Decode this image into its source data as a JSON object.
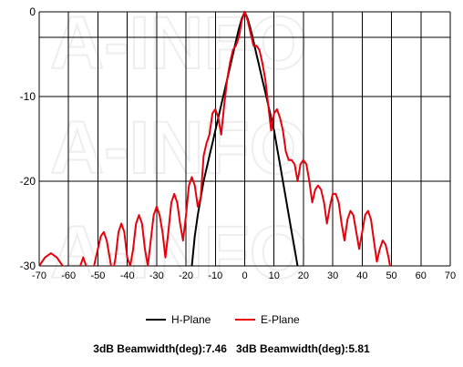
{
  "watermark_text": "A-INFO",
  "chart_data": {
    "type": "line",
    "xlim": [
      -70,
      70
    ],
    "ylim": [
      -30,
      0
    ],
    "x_ticks": [
      -70,
      -60,
      -50,
      -40,
      -30,
      -20,
      -10,
      0,
      10,
      20,
      30,
      40,
      50,
      60,
      70
    ],
    "y_ticks": [
      0,
      -10,
      -20,
      -30
    ],
    "grid": true,
    "legend_position": "bottom-center",
    "series": [
      {
        "name": "H-Plane",
        "color": "#000000",
        "x": [
          -18,
          -17,
          -16,
          -15,
          -14,
          -13,
          -12,
          -11,
          -10,
          -9,
          -8,
          -7,
          -6,
          -5,
          -4,
          -3,
          -2,
          -1,
          0,
          1,
          2,
          3,
          4,
          5,
          6,
          7,
          8,
          9,
          10,
          11,
          12,
          13,
          14,
          15,
          16,
          17,
          18
        ],
        "y": [
          -30,
          -26.5,
          -24,
          -22,
          -20,
          -18.5,
          -17,
          -15.5,
          -14,
          -12.5,
          -11,
          -9.5,
          -8,
          -6.5,
          -5,
          -3.5,
          -2,
          -0.8,
          0,
          -0.8,
          -2,
          -3.5,
          -5,
          -6.5,
          -8,
          -9.5,
          -11,
          -12.5,
          -14,
          -16,
          -18,
          -20,
          -22,
          -24,
          -26,
          -28,
          -30
        ]
      },
      {
        "name": "E-Plane",
        "color": "#e8000b",
        "x": [
          -70,
          -68,
          -66,
          -64,
          -62,
          -60,
          -58,
          -56,
          -55,
          -54,
          -52,
          -50,
          -49,
          -48,
          -47,
          -46,
          -45,
          -44,
          -43,
          -42,
          -41,
          -40,
          -39,
          -38,
          -37,
          -36,
          -35,
          -34,
          -33,
          -32,
          -31,
          -30,
          -29,
          -28,
          -27,
          -26,
          -25,
          -24,
          -23,
          -22,
          -21,
          -20,
          -19,
          -18,
          -17,
          -16,
          -15,
          -14,
          -13,
          -12,
          -11,
          -10,
          -9,
          -8,
          -7,
          -6,
          -5,
          -4,
          -3,
          -2,
          -1,
          0,
          1,
          2,
          3,
          4,
          5,
          6,
          7,
          8,
          9,
          10,
          11,
          12,
          13,
          14,
          15,
          16,
          17,
          18,
          19,
          20,
          21,
          22,
          23,
          24,
          25,
          26,
          27,
          28,
          29,
          30,
          31,
          32,
          33,
          34,
          35,
          36,
          37,
          38,
          39,
          40,
          41,
          42,
          43,
          44,
          45,
          46,
          47,
          48,
          49,
          50
        ],
        "y": [
          -30,
          -29,
          -28.5,
          -29,
          -30,
          -31,
          -31,
          -30,
          -29,
          -30,
          -31,
          -28,
          -26.5,
          -26,
          -27,
          -29,
          -31,
          -29,
          -26,
          -25,
          -26,
          -29,
          -30,
          -28,
          -25,
          -24,
          -25,
          -28,
          -30,
          -27,
          -24,
          -23,
          -24,
          -26,
          -29,
          -26,
          -22.5,
          -21.5,
          -22.5,
          -25,
          -27,
          -24,
          -20.5,
          -19.5,
          -20.5,
          -23,
          -22,
          -17,
          -15.5,
          -14.5,
          -12,
          -11.5,
          -12.5,
          -14.5,
          -11,
          -8,
          -6,
          -4.5,
          -4,
          -3,
          -1,
          0,
          -1,
          -2.5,
          -4,
          -4,
          -4.5,
          -6,
          -8,
          -11,
          -14,
          -12,
          -11.5,
          -12.5,
          -14,
          -16.5,
          -17.5,
          -17.5,
          -18,
          -20,
          -18,
          -17.5,
          -18,
          -20,
          -22.5,
          -21,
          -20.5,
          -21,
          -22.5,
          -25,
          -23,
          -21.5,
          -21.5,
          -22.5,
          -25,
          -27,
          -24.5,
          -23.5,
          -24,
          -26,
          -28,
          -26,
          -24,
          -23.5,
          -24.5,
          -27,
          -29.5,
          -28,
          -27,
          -27.5,
          -29,
          -31
        ]
      }
    ]
  },
  "footer": {
    "left": "3dB Beamwidth(deg):7.46",
    "right": "3dB Beamwidth(deg):5.81"
  }
}
